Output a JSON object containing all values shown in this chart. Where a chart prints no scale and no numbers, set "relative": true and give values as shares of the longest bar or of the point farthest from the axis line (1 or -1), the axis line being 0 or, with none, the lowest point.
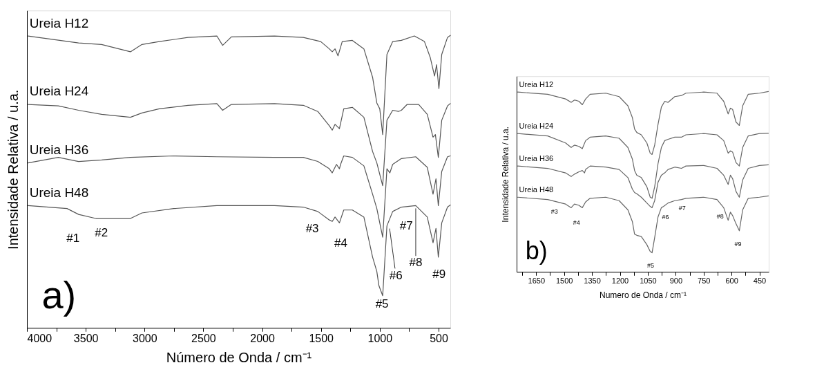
{
  "chart_data": [
    {
      "type": "line",
      "xlabel": "Número de Onda / cm⁻¹",
      "ylabel": "Intensidade Relativa / u.a.",
      "relative": true,
      "legend": false,
      "xlim": [
        4000,
        400
      ],
      "xticks": [
        4000,
        {
          "value": 3750,
          "label": null
        },
        3500,
        {
          "value": 3250,
          "label": null
        },
        3000,
        {
          "value": 2750,
          "label": null
        },
        2500,
        {
          "value": 2250,
          "label": null
        },
        2000,
        {
          "value": 1750,
          "label": null
        },
        1500,
        {
          "value": 1250,
          "label": null
        },
        1000,
        {
          "value": 750,
          "label": null
        },
        500
      ],
      "series": [
        {
          "name": "Ureia H12",
          "color": "#555555",
          "x": [
            3990,
            3561,
            3365,
            3120,
            3022,
            2875,
            2630,
            2385,
            2336,
            2262,
            1895,
            1650,
            1502,
            1429,
            1404,
            1380,
            1355,
            1319,
            1233,
            1135,
            1061,
            1025,
            1000,
            975,
            939,
            890,
            816,
            706,
            620,
            571,
            534,
            517,
            497,
            473,
            424,
            400
          ],
          "values": [
            0.998,
            0.974,
            0.969,
            0.944,
            0.969,
            0.979,
            0.993,
            0.998,
            0.966,
            0.995,
            0.998,
            0.993,
            0.979,
            0.954,
            0.944,
            0.954,
            0.93,
            0.979,
            0.983,
            0.954,
            0.857,
            0.769,
            0.749,
            0.661,
            0.935,
            0.979,
            0.983,
            0.998,
            0.979,
            0.925,
            0.861,
            0.9,
            0.818,
            0.935,
            0.993,
            1
          ]
        },
        {
          "name": "Ureia H24",
          "color": "#555555",
          "x": [
            3990,
            3733,
            3561,
            3365,
            3120,
            3022,
            2875,
            2630,
            2385,
            2336,
            2262,
            1895,
            1650,
            1527,
            1429,
            1404,
            1380,
            1343,
            1306,
            1233,
            1135,
            1061,
            1025,
            975,
            939,
            890,
            841,
            816,
            767,
            669,
            596,
            547,
            527,
            502,
            473,
            424,
            400
          ],
          "values": [
            0.764,
            0.759,
            0.744,
            0.73,
            0.72,
            0.735,
            0.749,
            0.761,
            0.767,
            0.744,
            0.764,
            0.767,
            0.761,
            0.74,
            0.691,
            0.676,
            0.696,
            0.681,
            0.749,
            0.754,
            0.72,
            0.603,
            0.564,
            0.486,
            0.71,
            0.744,
            0.74,
            0.744,
            0.764,
            0.764,
            0.73,
            0.652,
            0.661,
            0.583,
            0.71,
            0.759,
            0.767
          ]
        },
        {
          "name": "Ureia H36",
          "color": "#555555",
          "x": [
            3990,
            3733,
            3561,
            3365,
            3120,
            2752,
            2385,
            1895,
            1650,
            1527,
            1429,
            1404,
            1368,
            1343,
            1333,
            1306,
            1233,
            1135,
            1061,
            1025,
            975,
            939,
            914,
            890,
            816,
            694,
            596,
            547,
            522,
            502,
            473,
            424,
            400
          ],
          "values": [
            0.564,
            0.583,
            0.569,
            0.574,
            0.583,
            0.588,
            0.585,
            0.583,
            0.583,
            0.569,
            0.544,
            0.53,
            0.559,
            0.544,
            0.559,
            0.588,
            0.583,
            0.554,
            0.457,
            0.408,
            0.31,
            0.544,
            0.53,
            0.559,
            0.579,
            0.585,
            0.549,
            0.457,
            0.51,
            0.418,
            0.535,
            0.585,
            0.588
          ]
        },
        {
          "name": "Ureia H48",
          "color": "#555555",
          "x": [
            3990,
            3659,
            3561,
            3414,
            3120,
            3022,
            2752,
            2385,
            1895,
            1650,
            1527,
            1429,
            1404,
            1380,
            1343,
            1306,
            1233,
            1135,
            1061,
            1025,
            1007,
            975,
            939,
            890,
            816,
            694,
            596,
            547,
            522,
            502,
            473,
            424,
            400
          ],
          "values": [
            0.418,
            0.408,
            0.388,
            0.374,
            0.374,
            0.393,
            0.408,
            0.418,
            0.418,
            0.413,
            0.398,
            0.369,
            0.364,
            0.379,
            0.359,
            0.403,
            0.403,
            0.379,
            0.242,
            0.193,
            0.144,
            0.11,
            0.349,
            0.398,
            0.413,
            0.418,
            0.379,
            0.291,
            0.34,
            0.242,
            0.359,
            0.413,
            0.42
          ]
        }
      ],
      "annotations": [
        {
          "text": "#1",
          "x": 3561,
          "y": 0.388
        },
        {
          "text": "#2",
          "x": 3414,
          "y": 0.374
        },
        {
          "text": "#3",
          "x": 1527,
          "y": 0.398
        },
        {
          "text": "#4",
          "x": 1343,
          "y": 0.359
        },
        {
          "text": "#5",
          "x": 975,
          "y": 0.11
        },
        {
          "text": "#6",
          "x": 939,
          "y": 0.349
        },
        {
          "text": "#7",
          "x": 816,
          "y": 0.413
        },
        {
          "text": "#8",
          "x": 694,
          "y": 0.418
        },
        {
          "text": "#9",
          "x": 502,
          "y": 0.242
        },
        "a)"
      ]
    },
    {
      "type": "line",
      "xlabel": "Numero de Onda / cm⁻¹",
      "ylabel": "Intensidade Relativa / u.a.",
      "relative": true,
      "legend": false,
      "xlim": [
        1755,
        400
      ],
      "xticks": [
        {
          "value": 1725,
          "label": null
        },
        1650,
        {
          "value": 1575,
          "label": null
        },
        1500,
        {
          "value": 1425,
          "label": null
        },
        1350,
        {
          "value": 1275,
          "label": null
        },
        1200,
        {
          "value": 1125,
          "label": null
        },
        1050,
        {
          "value": 975,
          "label": null
        },
        900,
        {
          "value": 825,
          "label": null
        },
        750,
        {
          "value": 675,
          "label": null
        },
        600,
        {
          "value": 525,
          "label": null
        },
        450
      ],
      "series": [
        {
          "name": "Ureia H12",
          "color": "#666666",
          "x": [
            1749,
            1588,
            1492,
            1462,
            1444,
            1420,
            1402,
            1384,
            1360,
            1276,
            1204,
            1157,
            1133,
            1121,
            1109,
            1085,
            1055,
            1037,
            1027,
            1013,
            995,
            977,
            959,
            941,
            905,
            869,
            845,
            749,
            678,
            642,
            618,
            606,
            594,
            576,
            558,
            540,
            510,
            450,
            402
          ],
          "values": [
            0.997,
            0.985,
            0.959,
            0.94,
            0.953,
            0.946,
            0.927,
            0.959,
            0.985,
            0.991,
            0.972,
            0.921,
            0.856,
            0.792,
            0.773,
            0.76,
            0.715,
            0.658,
            0.651,
            0.703,
            0.818,
            0.914,
            0.946,
            0.94,
            0.972,
            0.978,
            0.991,
            0.997,
            0.991,
            0.946,
            0.876,
            0.908,
            0.901,
            0.831,
            0.812,
            0.921,
            0.985,
            0.991,
            1
          ]
        },
        {
          "name": "Ureia H24",
          "color": "#666666",
          "x": [
            1749,
            1588,
            1492,
            1462,
            1444,
            1420,
            1402,
            1384,
            1360,
            1276,
            1204,
            1157,
            1133,
            1121,
            1109,
            1085,
            1055,
            1037,
            1027,
            1013,
            995,
            977,
            959,
            941,
            905,
            869,
            845,
            749,
            678,
            642,
            618,
            606,
            594,
            576,
            558,
            540,
            510,
            450,
            402
          ],
          "values": [
            0.767,
            0.754,
            0.715,
            0.69,
            0.703,
            0.696,
            0.683,
            0.728,
            0.747,
            0.754,
            0.741,
            0.69,
            0.626,
            0.562,
            0.536,
            0.523,
            0.472,
            0.414,
            0.408,
            0.472,
            0.6,
            0.69,
            0.728,
            0.735,
            0.747,
            0.747,
            0.76,
            0.767,
            0.76,
            0.728,
            0.658,
            0.671,
            0.664,
            0.606,
            0.587,
            0.69,
            0.754,
            0.767,
            0.769
          ]
        },
        {
          "name": "Ureia H36",
          "color": "#666666",
          "x": [
            1749,
            1588,
            1492,
            1462,
            1444,
            1420,
            1402,
            1390,
            1384,
            1360,
            1276,
            1204,
            1157,
            1133,
            1121,
            1109,
            1085,
            1055,
            1037,
            1027,
            1013,
            995,
            977,
            959,
            941,
            905,
            869,
            845,
            749,
            678,
            642,
            618,
            606,
            594,
            576,
            558,
            540,
            510,
            450,
            402
          ],
          "values": [
            0.587,
            0.574,
            0.549,
            0.529,
            0.542,
            0.555,
            0.562,
            0.549,
            0.568,
            0.587,
            0.581,
            0.568,
            0.523,
            0.459,
            0.44,
            0.433,
            0.414,
            0.382,
            0.363,
            0.356,
            0.395,
            0.497,
            0.536,
            0.549,
            0.568,
            0.581,
            0.574,
            0.587,
            0.59,
            0.574,
            0.536,
            0.485,
            0.536,
            0.517,
            0.446,
            0.414,
            0.51,
            0.574,
            0.59,
            0.594
          ]
        },
        {
          "name": "Ureia H48",
          "color": "#666666",
          "x": [
            1749,
            1588,
            1492,
            1462,
            1444,
            1420,
            1402,
            1384,
            1360,
            1276,
            1204,
            1157,
            1133,
            1121,
            1109,
            1085,
            1055,
            1037,
            1027,
            1013,
            995,
            977,
            965,
            941,
            905,
            869,
            845,
            749,
            678,
            642,
            618,
            606,
            594,
            576,
            558,
            540,
            510,
            450,
            402
          ],
          "values": [
            0.414,
            0.401,
            0.376,
            0.356,
            0.376,
            0.369,
            0.356,
            0.388,
            0.408,
            0.414,
            0.395,
            0.344,
            0.279,
            0.209,
            0.203,
            0.196,
            0.151,
            0.113,
            0.106,
            0.19,
            0.305,
            0.356,
            0.363,
            0.382,
            0.395,
            0.401,
            0.408,
            0.414,
            0.401,
            0.356,
            0.286,
            0.331,
            0.312,
            0.267,
            0.228,
            0.344,
            0.408,
            0.414,
            0.421
          ]
        }
      ],
      "annotations": [
        {
          "text": "#3",
          "x": 1492,
          "y": 0.376
        },
        {
          "text": "#4",
          "x": 1444,
          "y": 0.376
        },
        {
          "text": "#5",
          "x": 1027,
          "y": 0.106
        },
        {
          "text": "#6",
          "x": 977,
          "y": 0.356
        },
        {
          "text": "#7",
          "x": 869,
          "y": 0.401
        },
        {
          "text": "#8",
          "x": 642,
          "y": 0.356
        },
        {
          "text": "#9",
          "x": 576,
          "y": 0.267
        },
        "b)"
      ]
    }
  ]
}
